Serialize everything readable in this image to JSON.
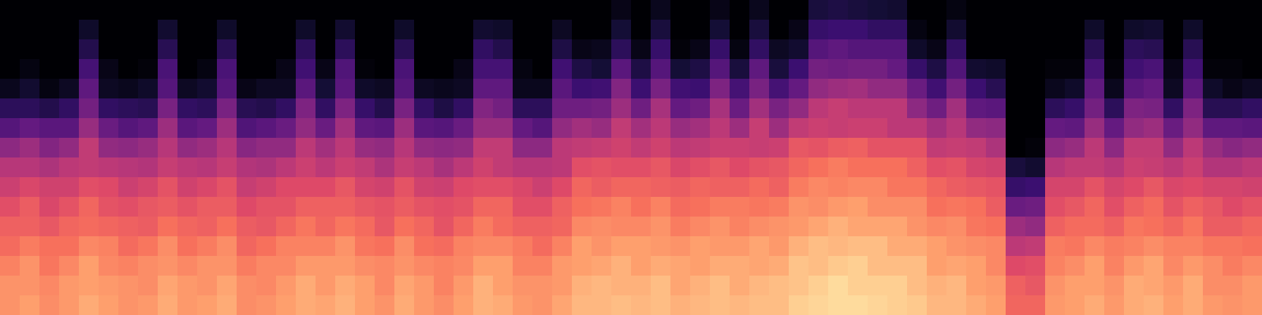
{
  "chart_data": {
    "type": "heatmap",
    "tick_labels": false,
    "zlim": [
      -80,
      0
    ],
    "cells": [
      [
        -18,
        -16,
        -19,
        -17,
        -14,
        -16,
        -18,
        -17,
        -14,
        -17,
        -16,
        -14,
        -19,
        -18,
        -16,
        -14,
        -15,
        -13,
        -16,
        -18,
        -14,
        -17,
        -19,
        -16,
        -13,
        -14,
        -17,
        -18,
        -15,
        -12,
        -12,
        -11,
        -12,
        -11,
        -13,
        -12,
        -11,
        -12,
        -11,
        -11,
        -8,
        -7,
        -6,
        -6,
        -7,
        -8,
        -9,
        -12,
        -12,
        -14,
        -16,
        -26,
        -26,
        -17,
        -16,
        -14,
        -17,
        -14,
        -13,
        -16,
        -14,
        -17,
        -18,
        -17
      ],
      [
        -18,
        -18,
        -20,
        -17,
        -16,
        -17,
        -18,
        -19,
        -15,
        -17,
        -18,
        -15,
        -19,
        -20,
        -17,
        -14,
        -17,
        -14,
        -16,
        -20,
        -15,
        -17,
        -21,
        -17,
        -13,
        -16,
        -18,
        -18,
        -17,
        -13,
        -12,
        -13,
        -13,
        -11,
        -15,
        -13,
        -11,
        -14,
        -12,
        -11,
        -10,
        -8,
        -6,
        -8,
        -8,
        -8,
        -11,
        -13,
        -12,
        -16,
        -17,
        -27,
        -29,
        -18,
        -16,
        -16,
        -18,
        -14,
        -15,
        -17,
        -14,
        -19,
        -19,
        -17
      ],
      [
        -21,
        -18,
        -23,
        -20,
        -16,
        -20,
        -21,
        -19,
        -18,
        -20,
        -18,
        -18,
        -22,
        -20,
        -20,
        -17,
        -17,
        -17,
        -19,
        -20,
        -18,
        -20,
        -21,
        -20,
        -16,
        -16,
        -21,
        -21,
        -17,
        -16,
        -15,
        -13,
        -16,
        -14,
        -15,
        -16,
        -14,
        -14,
        -15,
        -14,
        -10,
        -11,
        -9,
        -8,
        -11,
        -11,
        -11,
        -16,
        -15,
        -16,
        -20,
        -32,
        -31,
        -21,
        -19,
        -16,
        -21,
        -17,
        -15,
        -20,
        -17,
        -19,
        -22,
        -20
      ],
      [
        -25,
        -22,
        -24,
        -24,
        -20,
        -21,
        -25,
        -23,
        -19,
        -24,
        -22,
        -19,
        -26,
        -24,
        -21,
        -21,
        -21,
        -18,
        -23,
        -24,
        -19,
        -24,
        -25,
        -21,
        -20,
        -20,
        -22,
        -25,
        -21,
        -16,
        -18,
        -16,
        -16,
        -17,
        -18,
        -16,
        -17,
        -17,
        -15,
        -17,
        -13,
        -11,
        -12,
        -11,
        -11,
        -14,
        -14,
        -16,
        -18,
        -19,
        -20,
        -39,
        -38,
        -22,
        -23,
        -20,
        -22,
        -21,
        -19,
        -21,
        -21,
        -23,
        -23,
        -24
      ],
      [
        -27,
        -27,
        -29,
        -26,
        -25,
        -26,
        -27,
        -28,
        -24,
        -26,
        -27,
        -24,
        -28,
        -29,
        -26,
        -23,
        -26,
        -23,
        -25,
        -29,
        -24,
        -26,
        -30,
        -26,
        -22,
        -25,
        -27,
        -27,
        -26,
        -20,
        -19,
        -20,
        -20,
        -18,
        -22,
        -20,
        -18,
        -21,
        -19,
        -18,
        -17,
        -15,
        -13,
        -15,
        -15,
        -15,
        -18,
        -20,
        -19,
        -23,
        -24,
        -45,
        -47,
        -27,
        -25,
        -25,
        -27,
        -23,
        -24,
        -26,
        -23,
        -28,
        -28,
        -26
      ],
      [
        -31,
        -28,
        -33,
        -30,
        -26,
        -30,
        -31,
        -29,
        -28,
        -30,
        -28,
        -28,
        -32,
        -30,
        -30,
        -27,
        -27,
        -27,
        -29,
        -30,
        -28,
        -30,
        -31,
        -30,
        -26,
        -26,
        -31,
        -31,
        -27,
        -24,
        -23,
        -21,
        -24,
        -21,
        -25,
        -24,
        -22,
        -22,
        -23,
        -22,
        -18,
        -19,
        -17,
        -16,
        -19,
        -19,
        -19,
        -24,
        -23,
        -24,
        -28,
        -55,
        -54,
        -31,
        -29,
        -26,
        -31,
        -27,
        -25,
        -30,
        -27,
        -29,
        -32,
        -30
      ],
      [
        -36,
        -33,
        -35,
        -35,
        -31,
        -32,
        -36,
        -34,
        -30,
        -35,
        -33,
        -30,
        -37,
        -35,
        -32,
        -32,
        -32,
        -29,
        -34,
        -35,
        -30,
        -35,
        -36,
        -32,
        -31,
        -31,
        -33,
        -36,
        -32,
        -26,
        -28,
        -26,
        -26,
        -27,
        -28,
        -26,
        -27,
        -27,
        -25,
        -27,
        -22,
        -20,
        -21,
        -20,
        -20,
        -23,
        -23,
        -26,
        -28,
        -29,
        -30,
        -65,
        -64,
        -34,
        -34,
        -30,
        -34,
        -32,
        -29,
        -33,
        -32,
        -34,
        -34,
        -35
      ],
      [
        -40,
        -40,
        -42,
        -39,
        -38,
        -39,
        -40,
        -41,
        -37,
        -39,
        -40,
        -37,
        -41,
        -42,
        -39,
        -36,
        -39,
        -36,
        -38,
        -42,
        -37,
        -39,
        -43,
        -39,
        -35,
        -38,
        -40,
        -40,
        -39,
        -31,
        -30,
        -31,
        -31,
        -29,
        -33,
        -31,
        -29,
        -32,
        -30,
        -29,
        -26,
        -24,
        -22,
        -24,
        -24,
        -24,
        -27,
        -31,
        -30,
        -34,
        -35,
        -71,
        -73,
        -40,
        -38,
        -38,
        -40,
        -36,
        -37,
        -39,
        -36,
        -41,
        -41,
        -39
      ],
      [
        -48,
        -45,
        -50,
        -47,
        -38,
        -47,
        -48,
        -46,
        -40,
        -47,
        -45,
        -40,
        -49,
        -47,
        -47,
        -39,
        -44,
        -39,
        -46,
        -47,
        -40,
        -47,
        -48,
        -47,
        -38,
        -38,
        -48,
        -48,
        -39,
        -38,
        -37,
        -35,
        -38,
        -35,
        -39,
        -38,
        -36,
        -36,
        -37,
        -36,
        -29,
        -30,
        -28,
        -27,
        -30,
        -30,
        -30,
        -38,
        -37,
        -38,
        -42,
        -80,
        -79,
        -48,
        -46,
        -39,
        -48,
        -38,
        -38,
        -47,
        -39,
        -46,
        -49,
        -47
      ],
      [
        -59,
        -56,
        -58,
        -58,
        -46,
        -55,
        -59,
        -57,
        -45,
        -58,
        -56,
        -45,
        -60,
        -58,
        -55,
        -47,
        -55,
        -44,
        -57,
        -58,
        -45,
        -58,
        -59,
        -55,
        -46,
        -46,
        -56,
        -59,
        -47,
        -44,
        -46,
        -38,
        -44,
        -39,
        -46,
        -44,
        -39,
        -45,
        -37,
        -45,
        -38,
        -36,
        -37,
        -36,
        -36,
        -39,
        -39,
        -44,
        -40,
        -47,
        -48,
        -80,
        -80,
        -56,
        -57,
        -46,
        -56,
        -47,
        -45,
        -55,
        -47,
        -57,
        -57,
        -58
      ],
      [
        -67,
        -67,
        -69,
        -66,
        -53,
        -66,
        -67,
        -68,
        -52,
        -66,
        -67,
        -52,
        -68,
        -69,
        -66,
        -51,
        -66,
        -51,
        -65,
        -69,
        -52,
        -66,
        -70,
        -66,
        -50,
        -53,
        -67,
        -67,
        -54,
        -54,
        -53,
        -45,
        -54,
        -43,
        -56,
        -54,
        -43,
        -55,
        -44,
        -52,
        -47,
        -39,
        -37,
        -39,
        -39,
        -39,
        -48,
        -54,
        -44,
        -57,
        -58,
        -80,
        -80,
        -67,
        -65,
        -53,
        -67,
        -51,
        -52,
        -66,
        -51,
        -68,
        -68,
        -66
      ],
      [
        -76,
        -73,
        -78,
        -75,
        -57,
        -75,
        -76,
        -74,
        -59,
        -75,
        -73,
        -59,
        -77,
        -75,
        -75,
        -58,
        -72,
        -58,
        -74,
        -75,
        -59,
        -75,
        -76,
        -75,
        -57,
        -57,
        -76,
        -76,
        -58,
        -64,
        -63,
        -50,
        -64,
        -52,
        -63,
        -64,
        -51,
        -62,
        -52,
        -62,
        -56,
        -47,
        -45,
        -44,
        -47,
        -47,
        -55,
        -63,
        -53,
        -64,
        -68,
        -80,
        -80,
        -76,
        -74,
        -57,
        -76,
        -58,
        -56,
        -75,
        -58,
        -74,
        -77,
        -75
      ],
      [
        -80,
        -78,
        -80,
        -80,
        -62,
        -77,
        -80,
        -79,
        -61,
        -80,
        -78,
        -61,
        -80,
        -80,
        -77,
        -63,
        -77,
        -60,
        -79,
        -80,
        -61,
        -80,
        -80,
        -77,
        -62,
        -62,
        -78,
        -80,
        -63,
        -70,
        -72,
        -58,
        -70,
        -59,
        -72,
        -70,
        -59,
        -71,
        -57,
        -71,
        -64,
        -53,
        -54,
        -53,
        -53,
        -56,
        -65,
        -70,
        -60,
        -73,
        -74,
        -80,
        -80,
        -79,
        -79,
        -62,
        -79,
        -63,
        -61,
        -77,
        -63,
        -79,
        -79,
        -80
      ],
      [
        -80,
        -80,
        -80,
        -80,
        -69,
        -80,
        -80,
        -80,
        -68,
        -80,
        -80,
        -68,
        -80,
        -80,
        -80,
        -67,
        -80,
        -67,
        -80,
        -80,
        -68,
        -80,
        -80,
        -80,
        -66,
        -69,
        -80,
        -80,
        -70,
        -77,
        -76,
        -67,
        -77,
        -65,
        -79,
        -77,
        -65,
        -78,
        -66,
        -75,
        -73,
        -59,
        -57,
        -59,
        -59,
        -59,
        -74,
        -77,
        -66,
        -80,
        -80,
        -80,
        -80,
        -80,
        -80,
        -68,
        -80,
        -67,
        -68,
        -80,
        -68,
        -80,
        -80,
        -80
      ],
      [
        -80,
        -80,
        -80,
        -80,
        -74,
        -80,
        -80,
        -80,
        -73,
        -80,
        -80,
        -74,
        -80,
        -80,
        -80,
        -74,
        -80,
        -73,
        -80,
        -80,
        -74,
        -80,
        -80,
        -80,
        -73,
        -74,
        -80,
        -80,
        -75,
        -80,
        -80,
        -72,
        -80,
        -71,
        -80,
        -80,
        -72,
        -80,
        -71,
        -80,
        -77,
        -65,
        -64,
        -64,
        -66,
        -66,
        -78,
        -80,
        -73,
        -80,
        -80,
        -80,
        -80,
        -80,
        -80,
        -74,
        -80,
        -74,
        -73,
        -80,
        -74,
        -80,
        -80,
        -80
      ],
      [
        -80,
        -80,
        -80,
        -80,
        -80,
        -80,
        -80,
        -80,
        -80,
        -80,
        -80,
        -80,
        -80,
        -80,
        -80,
        -80,
        -80,
        -80,
        -80,
        -80,
        -80,
        -80,
        -80,
        -80,
        -80,
        -80,
        -80,
        -80,
        -80,
        -80,
        -80,
        -77,
        -80,
        -76,
        -80,
        -80,
        -77,
        -80,
        -76,
        -80,
        -80,
        -71,
        -70,
        -71,
        -72,
        -73,
        -80,
        -80,
        -78,
        -80,
        -80,
        -80,
        -80,
        -80,
        -80,
        -80,
        -80,
        -80,
        -80,
        -80,
        -80,
        -80,
        -80,
        -80
      ]
    ]
  }
}
